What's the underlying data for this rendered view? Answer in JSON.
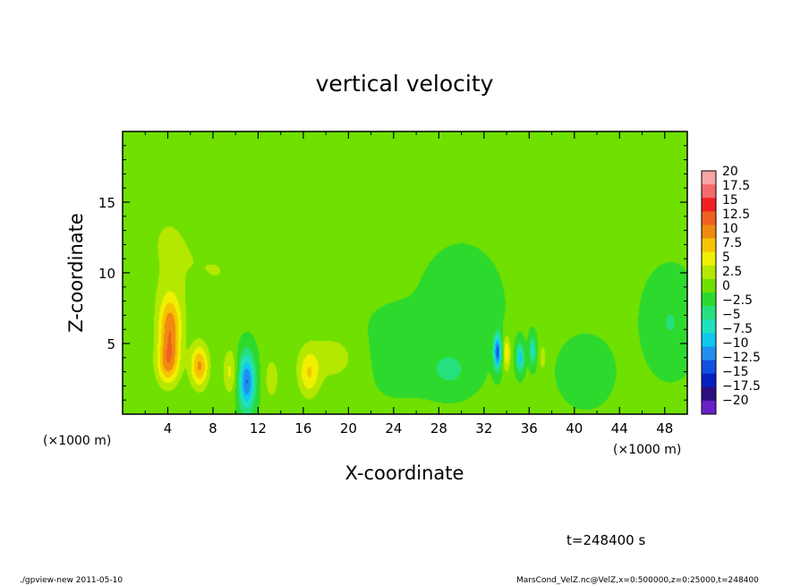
{
  "chart_data": {
    "type": "heatmap",
    "title": "vertical velocity",
    "xlabel": "X-coordinate",
    "ylabel": "Z-coordinate",
    "x_unit_left": "(×1000 m)",
    "x_unit_right": "(×1000 m)",
    "xlim": [
      0,
      50
    ],
    "ylim": [
      0,
      20
    ],
    "x_ticks": [
      4,
      8,
      12,
      16,
      20,
      24,
      28,
      32,
      36,
      40,
      44,
      48
    ],
    "y_ticks": [
      5,
      10,
      15
    ],
    "x_tick_labels": [
      "4",
      "8",
      "12",
      "16",
      "20",
      "24",
      "28",
      "32",
      "36",
      "40",
      "44",
      "48"
    ],
    "y_tick_labels": [
      "5",
      "10",
      "15"
    ],
    "colorbar": {
      "levels": [
        20,
        17.5,
        15,
        12.5,
        10,
        7.5,
        5,
        2.5,
        0,
        -2.5,
        -5,
        -7.5,
        -10,
        -12.5,
        -15,
        -17.5,
        -20
      ],
      "labels": [
        "20",
        "17.5",
        "15",
        "12.5",
        "10",
        "7.5",
        "5",
        "2.5",
        "0",
        "−2.5",
        "−5",
        "−7.5",
        "−10",
        "−12.5",
        "−15",
        "−17.5",
        "−20"
      ],
      "colors": [
        "#f7a4a4",
        "#f56a6a",
        "#f22020",
        "#f06020",
        "#f08a10",
        "#f5c400",
        "#f0f000",
        "#b4e800",
        "#70e000",
        "#2ed92e",
        "#26e080",
        "#20e0c0",
        "#10c8f0",
        "#2090f0",
        "#1050e0",
        "#0820c0",
        "#2a1080",
        "#6a20c8"
      ]
    },
    "features": [
      {
        "x": 4.2,
        "z": 6.0,
        "w": -0.0,
        "value": 11,
        "sx": 1.0,
        "sz": 2.4
      },
      {
        "x": 4.0,
        "z": 3.5,
        "value": 8,
        "sx": 1.0,
        "sz": 1.5
      },
      {
        "x": 6.8,
        "z": 3.4,
        "value": 10,
        "sx": 0.8,
        "sz": 1.5
      },
      {
        "x": 11.0,
        "z": 2.3,
        "value": -13,
        "sx": 0.7,
        "sz": 2.0
      },
      {
        "x": 9.5,
        "z": 3.0,
        "value": 5,
        "sx": 0.6,
        "sz": 1.6
      },
      {
        "x": 13.2,
        "z": 2.5,
        "value": 4,
        "sx": 0.6,
        "sz": 1.4
      },
      {
        "x": 16.5,
        "z": 2.8,
        "value": 6,
        "sx": 0.9,
        "sz": 1.6
      },
      {
        "x": 33.2,
        "z": 4.4,
        "value": -14,
        "sx": 0.35,
        "sz": 1.2
      },
      {
        "x": 34.0,
        "z": 4.3,
        "value": 7,
        "sx": 0.35,
        "sz": 1.2
      },
      {
        "x": 35.2,
        "z": 4.0,
        "value": -9,
        "sx": 0.35,
        "sz": 1.0
      },
      {
        "x": 36.3,
        "z": 4.5,
        "value": -7,
        "sx": 0.3,
        "sz": 1.0
      },
      {
        "x": 37.2,
        "z": 4.0,
        "value": 4,
        "sx": 0.3,
        "sz": 0.9
      },
      {
        "x": 24.5,
        "z": 4.5,
        "value": -2.5,
        "sx": 3.0,
        "sz": 2.5
      },
      {
        "x": 30.0,
        "z": 7.5,
        "value": -2.2,
        "sx": 3.0,
        "sz": 3.5
      },
      {
        "x": 41.0,
        "z": 3.0,
        "value": -2.5,
        "sx": 2.0,
        "sz": 2.0
      },
      {
        "x": 48.5,
        "z": 6.5,
        "value": -3.0,
        "sx": 2.0,
        "sz": 3.0
      },
      {
        "x": 18.5,
        "z": 4.0,
        "value": 3.0,
        "sx": 3.0,
        "sz": 2.0
      },
      {
        "x": 4.0,
        "z": 12.0,
        "value": 2.2,
        "sx": 3.5,
        "sz": 5.0
      },
      {
        "x": 9.0,
        "z": 10.0,
        "value": 1.8,
        "sx": 3.0,
        "sz": 3.0
      },
      {
        "x": 29.0,
        "z": 3.0,
        "value": -3.0,
        "sx": 2.0,
        "sz": 1.5
      }
    ]
  },
  "time_label": "t=248400 s",
  "footer_left": "./gpview-new 2011-05-10",
  "footer_right": "MarsCond_VelZ.nc@VelZ,x=0:500000,z=0:25000,t=248400"
}
